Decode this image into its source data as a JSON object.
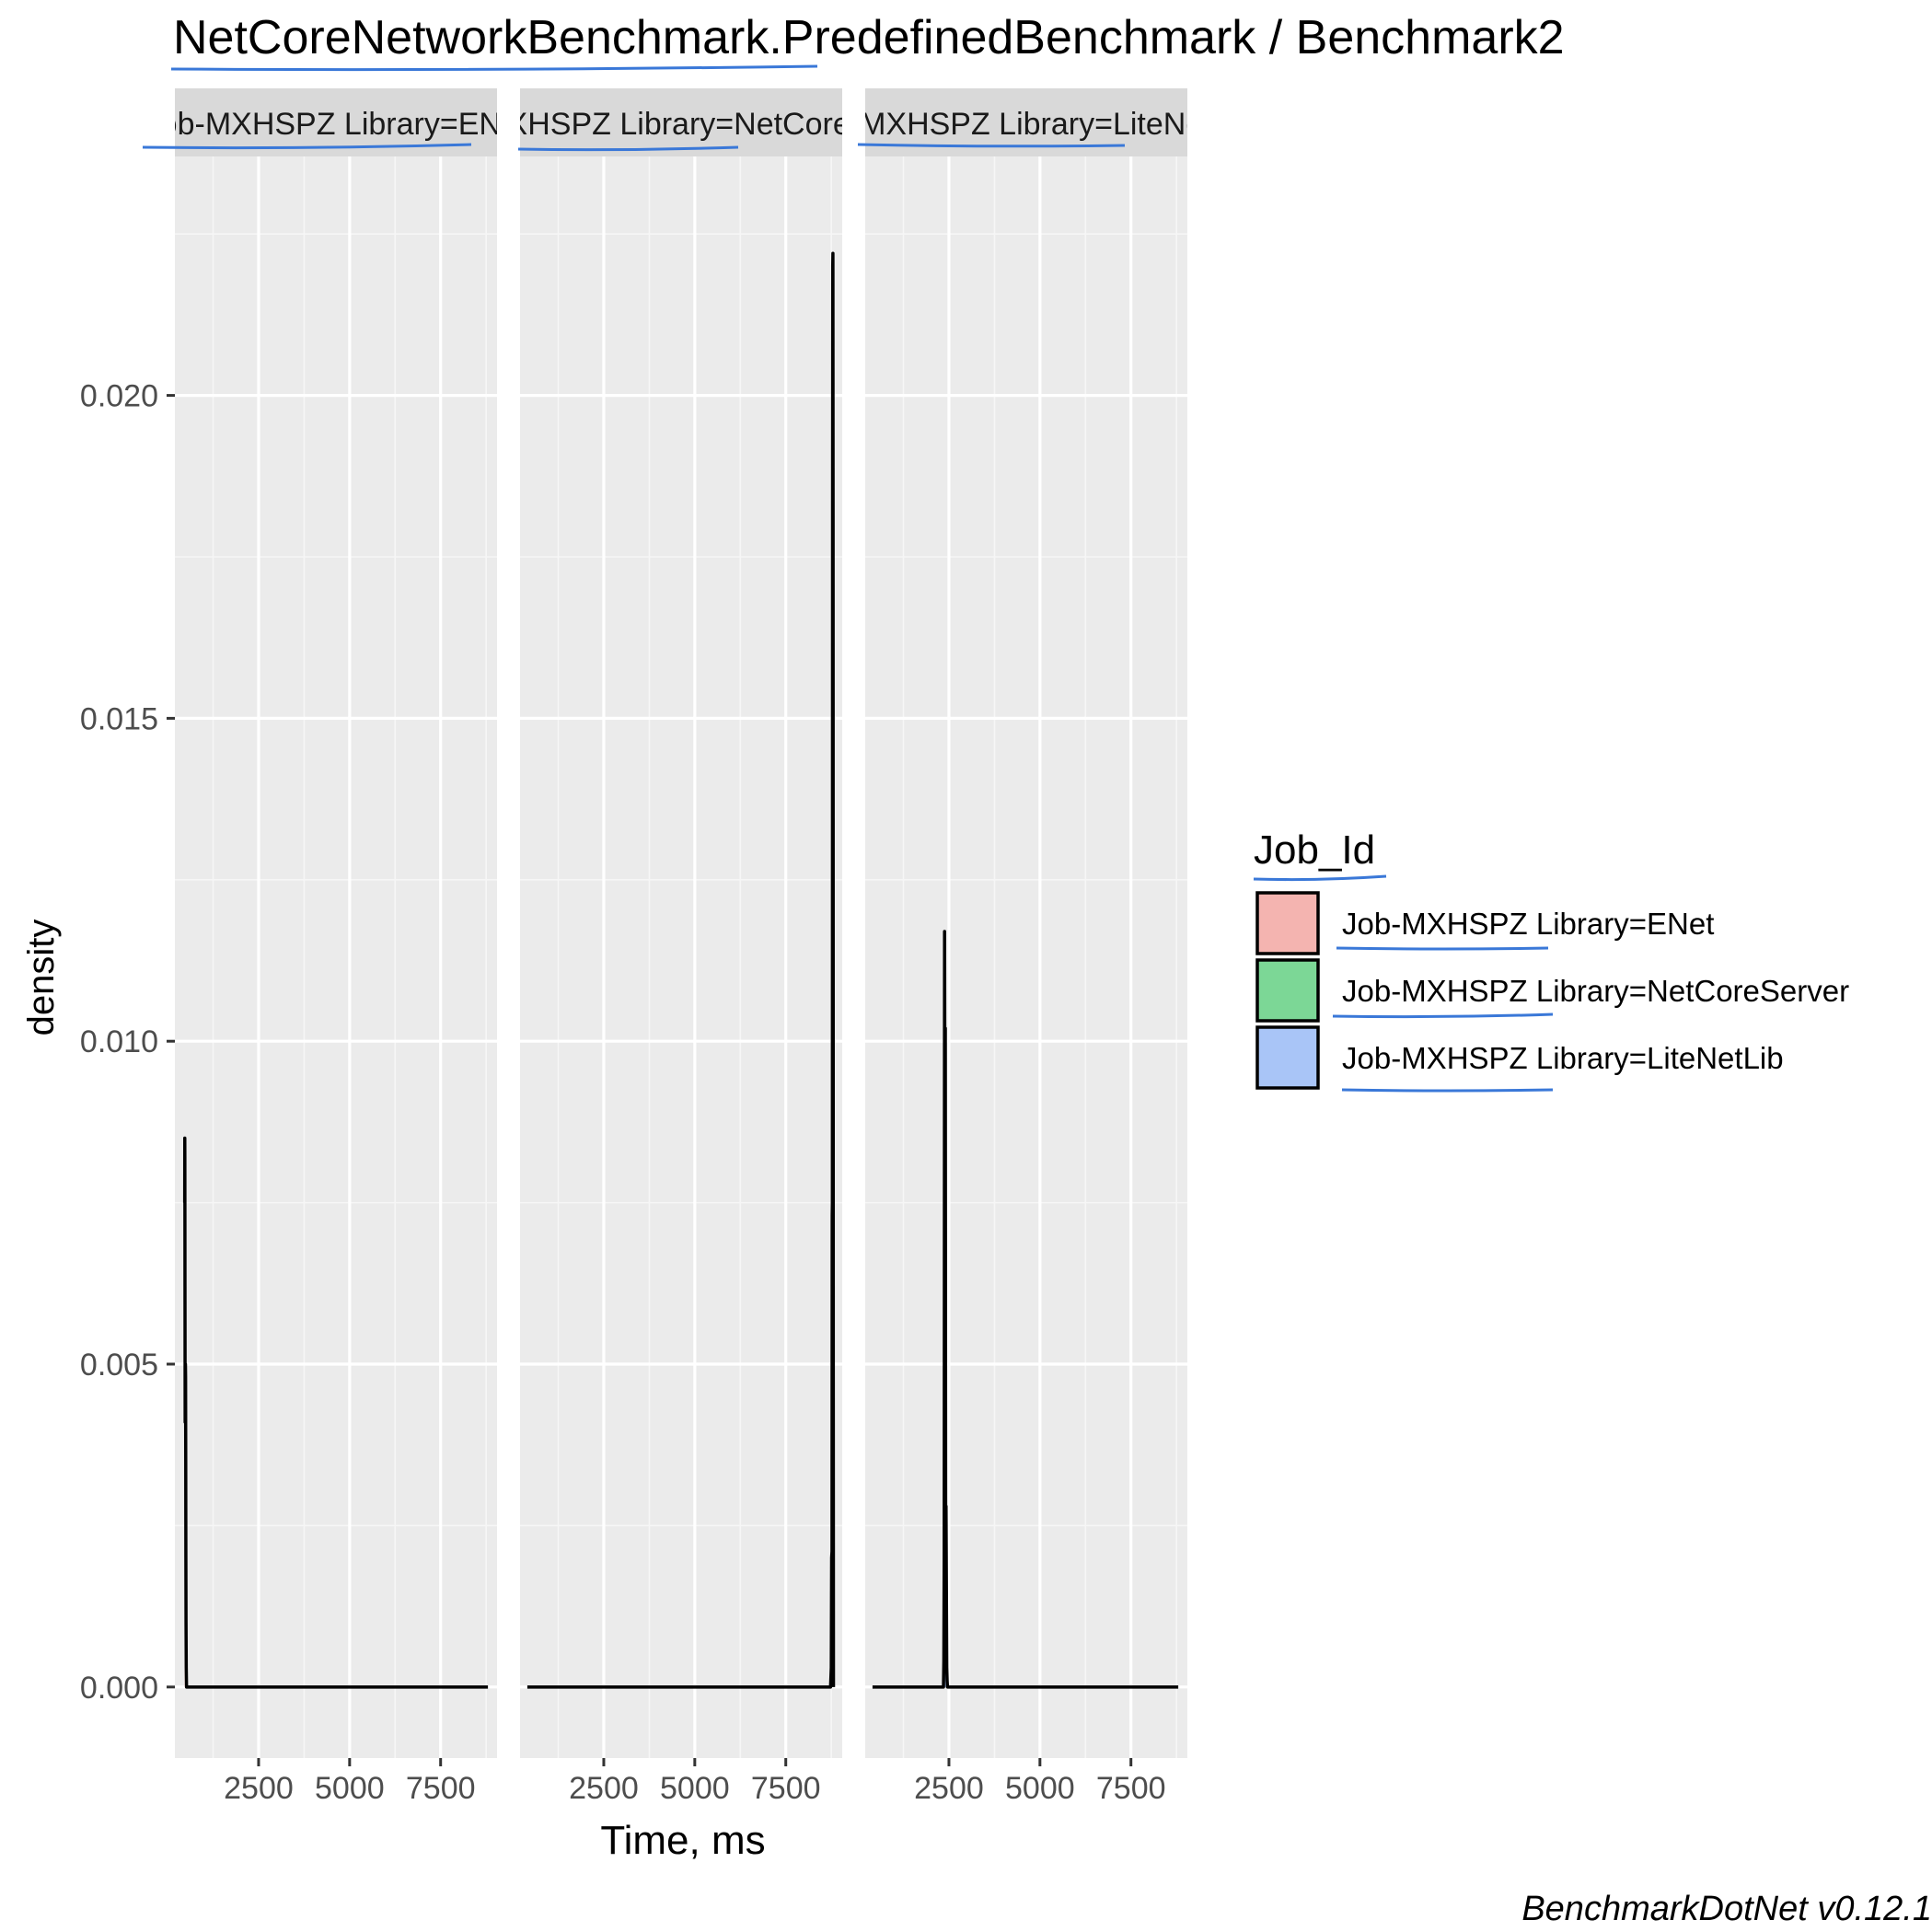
{
  "chart_data": {
    "type": "area",
    "title": "NetCoreNetworkBenchmark.PredefinedBenchmark / Benchmark2",
    "xlabel": "Time, ms",
    "ylabel": "density",
    "ylim": [
      -0.0011,
      0.0237
    ],
    "xlim": [
      200,
      9050
    ],
    "y_ticks": [
      "0.000",
      "0.005",
      "0.010",
      "0.015",
      "0.020"
    ],
    "x_ticks": [
      "2500",
      "5000",
      "7500"
    ],
    "grid": true,
    "legend": {
      "title": "Job_Id",
      "position": "right",
      "entries": [
        {
          "label": "Job-MXHSPZ Library=ENet",
          "color": "#F4B4B0"
        },
        {
          "label": "Job-MXHSPZ Library=NetCoreServer",
          "color": "#7CD796"
        },
        {
          "label": "Job-MXHSPZ Library=LiteNetLib",
          "color": "#A9C5F7"
        }
      ]
    },
    "facets": [
      {
        "strip_label": "Job-MXHSPZ Library=ENet",
        "color": "#F4B4B0",
        "x": [
          470,
          472,
          474,
          478,
          482,
          486,
          490,
          494,
          498,
          502,
          506,
          512,
          520,
          540,
          600,
          900,
          3000,
          6000,
          8800
        ],
        "y": [
          0.0075,
          0.0085,
          0.0082,
          0.006,
          0.0041,
          0.0042,
          0.005,
          0.0048,
          0.0035,
          0.002,
          0.001,
          0.0003,
          0.0,
          0.0,
          0.0,
          0.0,
          0.0,
          0.0,
          0.0
        ]
      },
      {
        "strip_label": "Job-MXHSPZ Library=NetCoreServer",
        "color": "#7CD796",
        "x": [
          400,
          2000,
          5000,
          7000,
          8700,
          8730,
          8750,
          8760,
          8770,
          8775,
          8780,
          8785,
          8790,
          8795,
          8800,
          8805,
          8810
        ],
        "y": [
          0.0,
          0.0,
          0.0,
          0.0,
          0.0,
          0.0,
          0.0003,
          0.002,
          0.0021,
          0.0073,
          0.0075,
          0.0182,
          0.022,
          0.0222,
          0.018,
          0.005,
          0.0
        ]
      },
      {
        "strip_label": "Job-MXHSPZ Library=LiteNetLib",
        "color": "#A9C5F7",
        "x": [
          400,
          1500,
          2300,
          2350,
          2360,
          2370,
          2380,
          2390,
          2400,
          2410,
          2420,
          2430,
          2440,
          2450,
          2460,
          2480,
          2520,
          3000,
          5000,
          8800
        ],
        "y": [
          0.0,
          0.0,
          0.0,
          0.0,
          0.0004,
          0.002,
          0.0117,
          0.008,
          0.0102,
          0.0024,
          0.0028,
          0.0015,
          0.0003,
          0.0001,
          0.0,
          0.0,
          0.0,
          0.0,
          0.0,
          0.0
        ]
      }
    ],
    "caption": "BenchmarkDotNet v0.12.1"
  }
}
